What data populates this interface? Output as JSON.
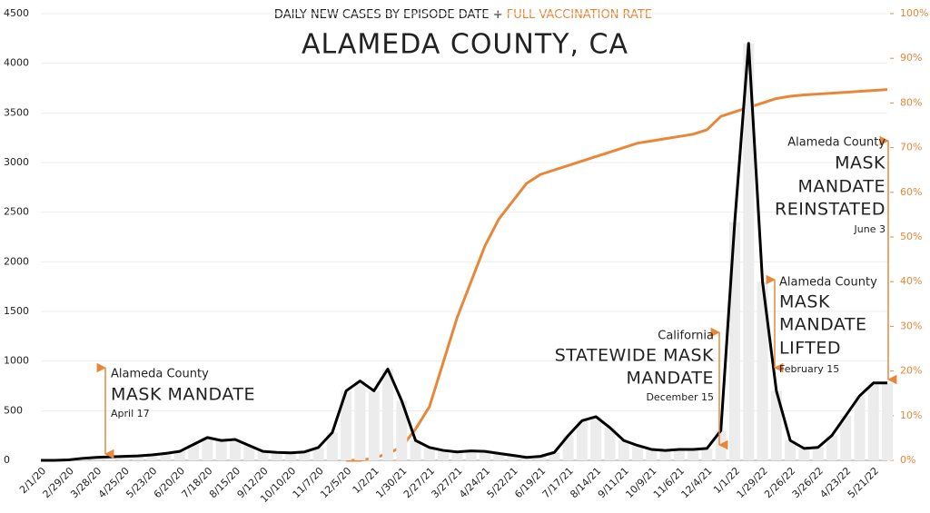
{
  "chart_data": {
    "type": "line",
    "subtitle": "DAILY NEW CASES BY EPISODE DATE + ",
    "subtitle_highlight": "FULL VACCINATION RATE",
    "title": "ALAMEDA COUNTY, CA",
    "categories": [
      "2/1/20",
      null,
      "2/29/20",
      null,
      "3/28/20",
      null,
      "4/25/20",
      null,
      "5/23/20",
      null,
      "6/20/20",
      null,
      "7/18/20",
      null,
      "8/15/20",
      null,
      "9/12/20",
      null,
      "10/10/20",
      null,
      "11/7/20",
      null,
      "12/5/20",
      null,
      "1/2/21",
      null,
      "1/30/21",
      null,
      "2/27/21",
      null,
      "3/27/21",
      null,
      "4/24/21",
      null,
      "5/22/21",
      null,
      "6/19/21",
      null,
      "7/17/21",
      null,
      "8/14/21",
      null,
      "9/11/21",
      null,
      "10/9/21",
      null,
      "11/6/21",
      null,
      "12/4/21",
      null,
      "1/1/22",
      null,
      "1/29/22",
      null,
      "2/26/22",
      null,
      "3/26/22",
      null,
      "4/23/22",
      null,
      "5/21/22",
      null
    ],
    "series": [
      {
        "name": "Daily new cases",
        "color": "#000000",
        "values": [
          0,
          0,
          5,
          20,
          30,
          35,
          40,
          45,
          55,
          70,
          90,
          160,
          230,
          200,
          210,
          150,
          90,
          80,
          75,
          85,
          130,
          280,
          700,
          800,
          700,
          920,
          600,
          200,
          130,
          100,
          85,
          95,
          90,
          70,
          50,
          30,
          40,
          80,
          250,
          400,
          440,
          330,
          200,
          150,
          110,
          100,
          110,
          110,
          120,
          300,
          2400,
          4200,
          1800,
          700,
          200,
          120,
          130,
          250,
          450,
          650,
          780,
          780
        ]
      },
      {
        "name": "Full vaccination rate",
        "color": "#e8873a",
        "axis": "y2",
        "values": [
          null,
          null,
          null,
          null,
          null,
          null,
          null,
          null,
          null,
          null,
          null,
          null,
          null,
          null,
          null,
          null,
          null,
          null,
          null,
          null,
          null,
          null,
          0,
          0,
          0.5,
          1.5,
          3,
          7,
          12,
          22,
          32,
          40,
          48,
          54,
          58,
          62,
          64,
          65,
          66,
          67,
          68,
          69,
          70,
          71,
          71.5,
          72,
          72.5,
          73,
          74,
          77,
          78,
          79,
          80,
          81,
          81.5,
          81.8,
          82,
          82.2,
          82.4,
          82.6,
          82.8,
          83
        ]
      }
    ],
    "ylim": [
      0,
      4500
    ],
    "yticks": [
      0,
      500,
      1000,
      1500,
      2000,
      2500,
      3000,
      3500,
      4000,
      4500
    ],
    "y2lim": [
      0,
      100
    ],
    "y2ticks": [
      {
        "value": 0,
        "label": "0%"
      },
      {
        "value": 10,
        "label": "10%"
      },
      {
        "value": 20,
        "label": "20%"
      },
      {
        "value": 30,
        "label": "30%"
      },
      {
        "value": 40,
        "label": "40%"
      },
      {
        "value": 50,
        "label": "50%"
      },
      {
        "value": 60,
        "label": "60%"
      },
      {
        "value": 70,
        "label": "70%"
      },
      {
        "value": 80,
        "label": "80%"
      },
      {
        "value": 90,
        "label": "90%"
      },
      {
        "value": 100,
        "label": "100%"
      }
    ],
    "grid": true,
    "annotations": [
      {
        "lines": [
          "Alameda County",
          "MASK MANDATE",
          "April 17"
        ]
      },
      {
        "lines": [
          "California",
          "STATEWIDE MASK",
          "MANDATE",
          "December 15"
        ]
      },
      {
        "lines": [
          "Alameda County",
          "MASK",
          "MANDATE",
          "LIFTED",
          "February 15"
        ]
      },
      {
        "lines": [
          "Alameda County",
          "MASK",
          "MANDATE",
          "REINSTATED",
          "June 3"
        ]
      }
    ]
  }
}
